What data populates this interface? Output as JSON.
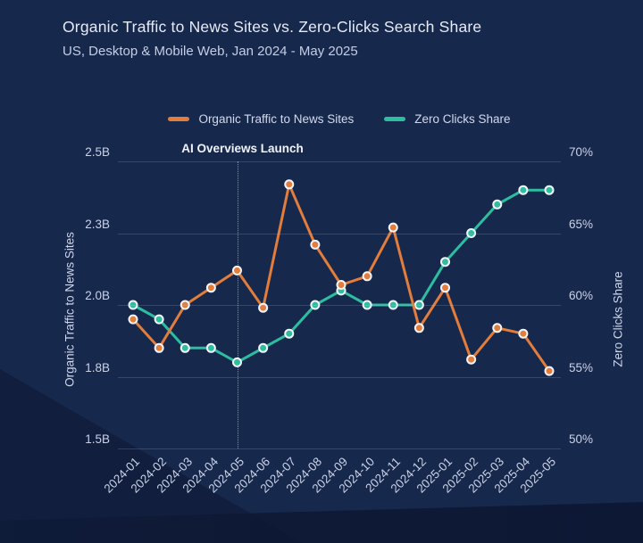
{
  "header": {
    "title": "Organic Traffic to News Sites vs. Zero-Clicks Search Share",
    "subtitle": "US, Desktop & Mobile Web, Jan 2024 - May 2025"
  },
  "colors": {
    "background": "#17284D",
    "accent_orange": "#E27D3B",
    "accent_teal": "#2DBEA1",
    "gridline": "rgba(202,214,240,0.18)",
    "marker_ring": "#F3F5FA"
  },
  "chart_data": {
    "type": "line",
    "title": "Organic Traffic to News Sites vs. Zero-Clicks Search Share",
    "subtitle": "US, Desktop & Mobile Web, Jan 2024 - May 2025",
    "grid": true,
    "legend_position": "top",
    "categories": [
      "2024-01",
      "2024-02",
      "2024-03",
      "2024-04",
      "2024-05",
      "2024-06",
      "2024-07",
      "2024-08",
      "2024-09",
      "2024-10",
      "2024-11",
      "2024-12",
      "2025-01",
      "2025-02",
      "2025-03",
      "2025-04",
      "2025-05"
    ],
    "series": [
      {
        "name": "Organic Traffic to News Sites",
        "axis": "left",
        "unit": "B",
        "color": "#E27D3B",
        "values": [
          1.95,
          1.85,
          2.0,
          2.06,
          2.12,
          1.99,
          2.42,
          2.21,
          2.07,
          2.1,
          2.27,
          1.92,
          2.06,
          1.81,
          1.92,
          1.9,
          1.77
        ]
      },
      {
        "name": "Zero Clicks Share",
        "axis": "right",
        "unit": "%",
        "color": "#2DBEA1",
        "values": [
          60,
          59,
          57,
          57,
          56,
          57,
          58,
          60,
          61,
          60,
          60,
          60,
          63,
          65,
          67,
          68,
          68
        ]
      }
    ],
    "left_axis": {
      "title": "Organic Traffic to News Sites",
      "tick_labels": [
        "2.5B",
        "2.3B",
        "2.0B",
        "1.8B",
        "1.5B"
      ],
      "min": 1.5,
      "max": 2.5
    },
    "right_axis": {
      "title": "Zero Clicks Share",
      "tick_labels": [
        "70%",
        "65%",
        "60%",
        "55%",
        "50%"
      ],
      "min": 50,
      "max": 70
    },
    "annotation": {
      "label": "AI Overviews Launch",
      "category": "2024-05"
    }
  }
}
